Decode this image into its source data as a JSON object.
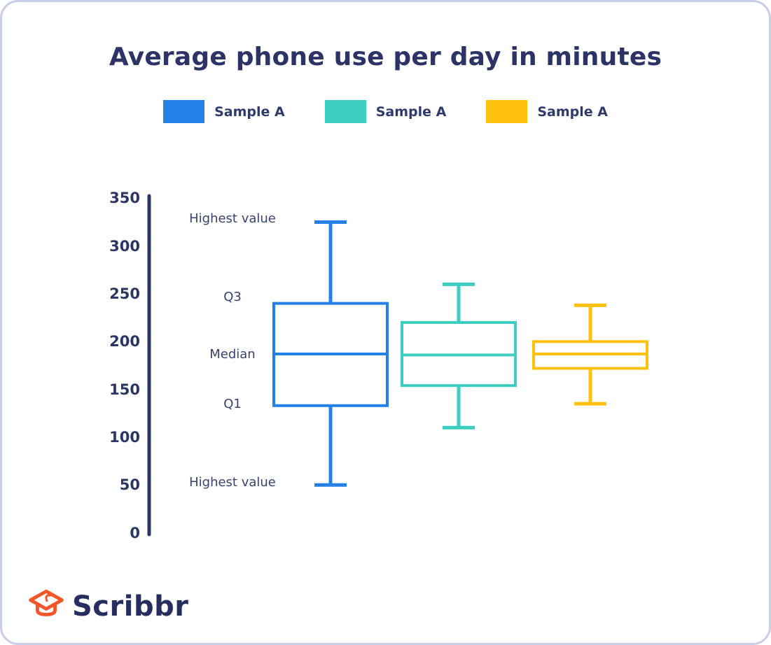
{
  "title": "Average phone use per day in minutes",
  "colors": {
    "navy_text": "#2b3367",
    "axis": "#2c3665",
    "annotation_text": "#39426f",
    "card_border": "#c7cee5",
    "sample_blue": "#2380e6",
    "sample_teal": "#3bcec1",
    "sample_yellow": "#ffc10e",
    "logo_orange": "#f4562a"
  },
  "legend": {
    "items": [
      {
        "label": "Sample A",
        "color": "#2380e6"
      },
      {
        "label": "Sample A",
        "color": "#3bcec1"
      },
      {
        "label": "Sample A",
        "color": "#ffc10e"
      }
    ]
  },
  "chart_data": {
    "type": "boxplot",
    "title": "Average phone use per day in minutes",
    "xlabel": "",
    "ylabel": "",
    "ylim": [
      0,
      350
    ],
    "yticks": [
      350,
      300,
      250,
      200,
      150,
      100,
      50,
      0
    ],
    "grid": false,
    "legend_position": "top",
    "annotations": [
      {
        "label": "Highest value",
        "value": 328
      },
      {
        "label": "Q3",
        "value": 246
      },
      {
        "label": "Median",
        "value": 186
      },
      {
        "label": "Q1",
        "value": 134
      },
      {
        "label": "Highest value",
        "value": 52
      }
    ],
    "series": [
      {
        "name": "Sample A",
        "color": "#2380e6",
        "min": 50,
        "q1": 133,
        "median": 187,
        "q3": 240,
        "max": 325
      },
      {
        "name": "Sample A",
        "color": "#3bcec1",
        "min": 110,
        "q1": 154,
        "median": 186,
        "q3": 220,
        "max": 260
      },
      {
        "name": "Sample A",
        "color": "#ffc10e",
        "min": 135,
        "q1": 172,
        "median": 187,
        "q3": 200,
        "max": 238
      }
    ]
  },
  "footer": {
    "brand": "Scribbr",
    "logo_icon": "graduation-cap-icon"
  }
}
